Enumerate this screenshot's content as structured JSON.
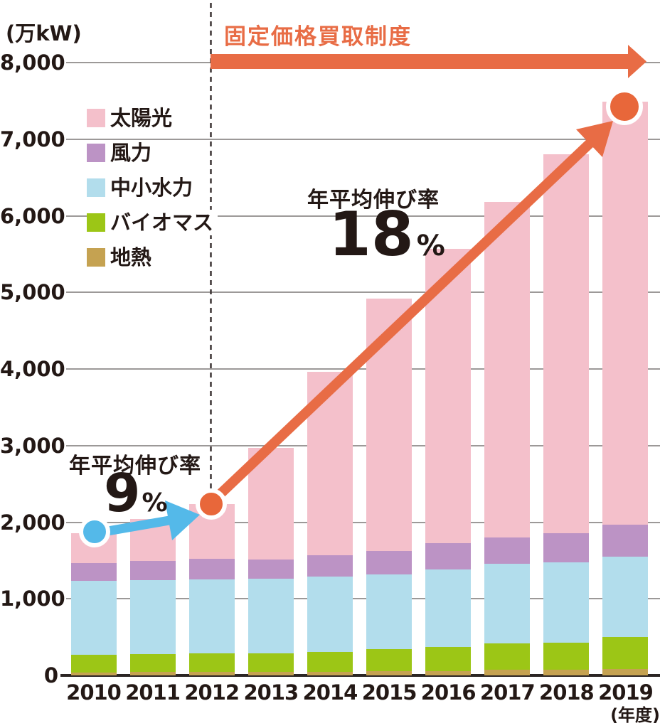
{
  "axis": {
    "unit_label": "(万kW)",
    "x_unit_label": "(年度)",
    "yticks": [
      "8,000",
      "7,000",
      "6,000",
      "5,000",
      "4,000",
      "3,000",
      "2,000",
      "1,000",
      "0"
    ]
  },
  "title_annotation": {
    "label": "固定価格買取制度"
  },
  "annotations": {
    "growth_low": {
      "label": "年平均伸び率",
      "value": "9",
      "unit": "%"
    },
    "growth_high": {
      "label": "年平均伸び率",
      "value": "18",
      "unit": "%"
    }
  },
  "colors": {
    "solar": "#f4c0cb",
    "wind": "#bc93c5",
    "hydro": "#b2ddec",
    "biomass": "#9cc616",
    "geothermal": "#c5a251",
    "accent_orange": "#e86c45",
    "accent_orange_circle": "#e8673a",
    "accent_blue": "#54b9e9",
    "grid": "#9c9998",
    "axis": "#2b2523",
    "dashed": "#3b3434",
    "text": "#231815",
    "white": "#ffffff"
  },
  "chart_data": {
    "type": "bar",
    "stacked": true,
    "title": "固定価格買取制度",
    "xlabel": "(年度)",
    "ylabel": "(万kW)",
    "ylim": [
      0,
      8000
    ],
    "grid": true,
    "legend_position": "upper-left",
    "categories": [
      "2010",
      "2011",
      "2012",
      "2013",
      "2014",
      "2015",
      "2016",
      "2017",
      "2018",
      "2019"
    ],
    "series": [
      {
        "name": "太陽光",
        "color": "#f4c0cb",
        "values": [
          390,
          550,
          720,
          1460,
          2390,
          3300,
          3840,
          4380,
          4945,
          5520
        ]
      },
      {
        "name": "風力",
        "color": "#bc93c5",
        "values": [
          240,
          250,
          270,
          250,
          280,
          300,
          350,
          345,
          375,
          420
        ]
      },
      {
        "name": "中小水力",
        "color": "#b2ddec",
        "values": [
          960,
          960,
          965,
          970,
          985,
          980,
          1010,
          1035,
          1050,
          1045
        ]
      },
      {
        "name": "バイオマス",
        "color": "#9cc616",
        "values": [
          230,
          235,
          240,
          245,
          260,
          285,
          310,
          350,
          360,
          420
        ]
      },
      {
        "name": "地熱",
        "color": "#c5a251",
        "values": [
          40,
          45,
          45,
          45,
          45,
          55,
          60,
          70,
          70,
          85
        ]
      }
    ],
    "totals": [
      1860,
      2040,
      2240,
      2970,
      3960,
      4920,
      5570,
      6180,
      6800,
      7490
    ],
    "annotations": [
      {
        "text": "固定価格買取制度",
        "note": "FIT start marker with horizontal arrow from 2012 at 8,000 line"
      },
      {
        "text": "年平均伸び率 9%",
        "note": "average annual growth 2010→2012, blue arrow"
      },
      {
        "text": "年平均伸び率 18%",
        "note": "average annual growth 2012→2019, orange diagonal arrow"
      }
    ]
  }
}
